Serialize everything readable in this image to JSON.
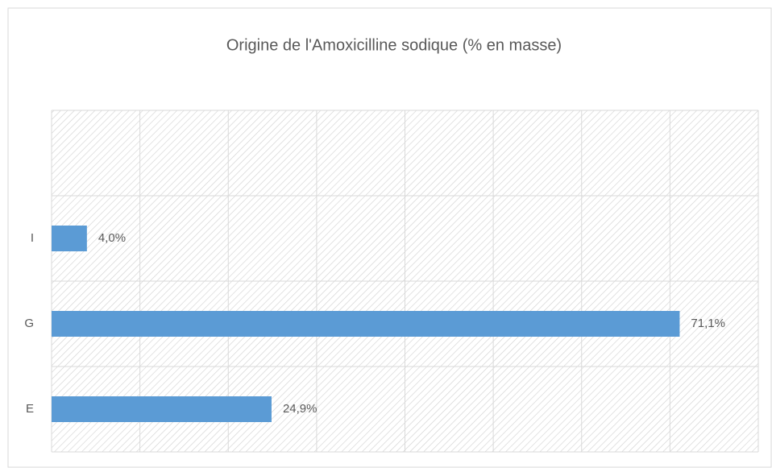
{
  "chart_data": {
    "type": "barh",
    "title": "Origine de l'Amoxicilline sodique (% en masse)",
    "categories": [
      "E",
      "G",
      "I",
      null
    ],
    "values": [
      24.9,
      71.1,
      4.0,
      null
    ],
    "value_labels": [
      "24,9%",
      "71,1%",
      "4,0%",
      null
    ],
    "color": "#5b9bd5",
    "xlim": [
      0,
      80
    ],
    "xticks": [
      0,
      10,
      20,
      30,
      40,
      50,
      60,
      70,
      80
    ],
    "grid": true
  }
}
